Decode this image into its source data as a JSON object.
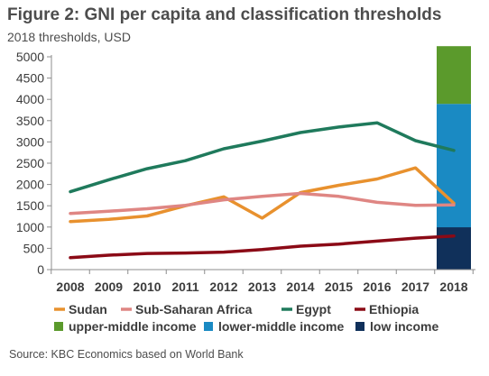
{
  "header": {
    "title": "Figure 2: GNI per capita and classification thresholds",
    "subtitle": "2018 thresholds, USD"
  },
  "footer": {
    "source": "Source: KBC Economics based on World Bank"
  },
  "chart_data": {
    "type": "line",
    "title": "Figure 2: GNI per capita and classification thresholds",
    "subtitle": "2018 thresholds, USD",
    "xlabel": "",
    "ylabel": "",
    "categories": [
      "2008",
      "2009",
      "2010",
      "2011",
      "2012",
      "2013",
      "2014",
      "2015",
      "2016",
      "2017",
      "2018"
    ],
    "ylim": [
      0,
      5000
    ],
    "yticks": [
      0,
      500,
      1000,
      1500,
      2000,
      2500,
      3000,
      3500,
      4000,
      4500,
      5000
    ],
    "grid": false,
    "legend_position": "bottom",
    "series": [
      {
        "name": "Sudan",
        "color": "#e8912e",
        "values": [
          1130,
          1180,
          1260,
          1500,
          1710,
          1210,
          1810,
          1980,
          2130,
          2390,
          1560
        ]
      },
      {
        "name": "Sub-Saharan Africa",
        "color": "#df8683",
        "values": [
          1320,
          1370,
          1430,
          1510,
          1640,
          1720,
          1790,
          1720,
          1580,
          1510,
          1520
        ]
      },
      {
        "name": "Egypt",
        "color": "#1f7a5c",
        "values": [
          1830,
          2110,
          2370,
          2560,
          2840,
          3020,
          3220,
          3350,
          3450,
          3030,
          2800
        ]
      },
      {
        "name": "Ethiopia",
        "color": "#8b0a16",
        "values": [
          280,
          340,
          380,
          390,
          410,
          470,
          550,
          600,
          670,
          740,
          790
        ]
      }
    ],
    "thresholds": {
      "category": "2018",
      "bands": [
        {
          "name": "low income",
          "color": "#10305a",
          "from": 0,
          "to": 995
        },
        {
          "name": "lower-middle income",
          "color": "#1a8ac3",
          "from": 995,
          "to": 3895
        },
        {
          "name": "upper-middle income",
          "color": "#5b9a2c",
          "from": 3895,
          "to": 5250
        }
      ]
    },
    "legend": {
      "lines": [
        "Sudan",
        "Sub-Saharan Africa",
        "Egypt",
        "Ethiopia"
      ],
      "bands": [
        "upper-middle income",
        "lower-middle income",
        "low income"
      ]
    }
  }
}
